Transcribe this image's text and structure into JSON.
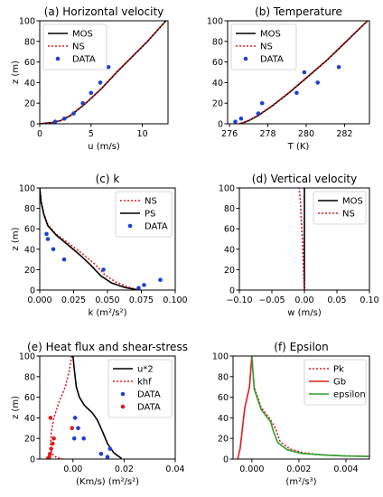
{
  "figure": {
    "name": "six-panel-profile-figure"
  },
  "chart_data": [
    {
      "id": "a",
      "type": "line",
      "title": "(a) Horizontal velocity",
      "xlabel": "u (m/s)",
      "ylabel": "z (m)",
      "xlim": [
        0,
        12.5
      ],
      "ylim": [
        0,
        100
      ],
      "xticks": [
        0,
        5,
        10
      ],
      "xtick_labels": [
        "0",
        "5",
        "10"
      ],
      "yticks": [
        0,
        20,
        40,
        60,
        80,
        100
      ],
      "ytick_labels": [
        "0",
        "20",
        "40",
        "60",
        "80",
        "100"
      ],
      "grid": false,
      "legend": "top-left",
      "series": [
        {
          "name": "MOS",
          "kind": "line",
          "color": "#000000",
          "dash": "",
          "x": [
            0,
            0.5,
            1.2,
            2,
            3,
            4.5,
            6,
            7.5,
            9,
            10.5,
            12.3
          ],
          "y": [
            0,
            0.5,
            1.2,
            3,
            8,
            20,
            34,
            50,
            65,
            80,
            100
          ]
        },
        {
          "name": "NS",
          "kind": "line",
          "color": "#e31a1c",
          "dash": "2,2",
          "x": [
            0,
            0.5,
            1.2,
            2,
            3,
            4.5,
            6,
            7.5,
            9,
            10.5,
            12.3
          ],
          "y": [
            0,
            0.5,
            1.3,
            3.2,
            8.3,
            20.3,
            34.3,
            50.3,
            65.3,
            80.3,
            100
          ]
        },
        {
          "name": "DATA",
          "kind": "scatter",
          "color": "#1f3fd6",
          "x": [
            1.5,
            2.4,
            3.3,
            4.2,
            5,
            5.9,
            6.7
          ],
          "y": [
            2,
            5,
            10,
            20,
            30,
            40,
            55
          ]
        }
      ]
    },
    {
      "id": "b",
      "type": "line",
      "title": "(b) Temperature",
      "xlabel": "T (K)",
      "ylabel": "",
      "xlim": [
        275.9,
        283.3
      ],
      "ylim": [
        0,
        100
      ],
      "xticks": [
        276,
        278,
        280,
        282
      ],
      "xtick_labels": [
        "276",
        "278",
        "280",
        "282"
      ],
      "yticks": [
        0,
        20,
        40,
        60,
        80,
        100
      ],
      "ytick_labels": [
        "0",
        "20",
        "40",
        "60",
        "80",
        "100"
      ],
      "grid": false,
      "legend": "top-left",
      "series": [
        {
          "name": "MOS",
          "kind": "line",
          "color": "#000000",
          "dash": "",
          "x": [
            276.5,
            276.7,
            277.0,
            277.5,
            278.2,
            279.1,
            280.1,
            281.1,
            282.1,
            283.2
          ],
          "y": [
            0,
            1,
            3,
            8,
            17,
            30,
            46,
            62,
            80,
            100
          ]
        },
        {
          "name": "NS",
          "kind": "line",
          "color": "#e31a1c",
          "dash": "2,2",
          "x": [
            276.5,
            276.7,
            277.0,
            277.5,
            278.2,
            279.1,
            280.1,
            281.1,
            282.1,
            283.2
          ],
          "y": [
            0,
            1.2,
            3.3,
            8.4,
            17.4,
            30.4,
            46.4,
            62.4,
            80.4,
            100
          ]
        },
        {
          "name": "DATA",
          "kind": "scatter",
          "color": "#1f3fd6",
          "x": [
            276.3,
            276.6,
            277.5,
            277.7,
            279.5,
            279.9,
            280.6,
            281.7
          ],
          "y": [
            2,
            5,
            10,
            20,
            30,
            50,
            40,
            55
          ]
        }
      ]
    },
    {
      "id": "c",
      "type": "line",
      "title": "(c) k",
      "xlabel": "k (m²/s²)",
      "ylabel": "z (m)",
      "xlim": [
        0,
        0.1
      ],
      "ylim": [
        0,
        100
      ],
      "xticks": [
        0,
        0.025,
        0.05,
        0.075,
        0.1
      ],
      "xtick_labels": [
        "0.000",
        "0.025",
        "0.050",
        "0.075",
        "0.100"
      ],
      "yticks": [
        0,
        20,
        40,
        60,
        80,
        100
      ],
      "ytick_labels": [
        "0",
        "20",
        "40",
        "60",
        "80",
        "100"
      ],
      "grid": false,
      "legend": "top-right",
      "series": [
        {
          "name": "NS",
          "kind": "line",
          "color": "#e31a1c",
          "dash": "2,2",
          "x": [
            0.0,
            0.001,
            0.003,
            0.006,
            0.012,
            0.022,
            0.032,
            0.041,
            0.048,
            0.056,
            0.065,
            0.072
          ],
          "y": [
            100,
            88,
            75,
            64,
            55,
            45,
            35,
            25,
            15,
            8,
            3,
            0.5
          ]
        },
        {
          "name": "PS",
          "kind": "line",
          "color": "#000000",
          "dash": "",
          "x": [
            0.0,
            0.001,
            0.003,
            0.006,
            0.012,
            0.021,
            0.03,
            0.038,
            0.045,
            0.053,
            0.063,
            0.071
          ],
          "y": [
            100,
            86,
            74,
            63,
            54,
            44,
            34,
            24,
            14,
            7,
            2.5,
            0.5
          ]
        },
        {
          "name": "DATA",
          "kind": "scatter",
          "color": "#1f3fd6",
          "x": [
            0.005,
            0.006,
            0.01,
            0.018,
            0.047,
            0.073,
            0.077,
            0.089
          ],
          "y": [
            55,
            50,
            40,
            30,
            20,
            2,
            5,
            10
          ]
        }
      ]
    },
    {
      "id": "d",
      "type": "line",
      "title": "(d) Vertical velocity",
      "xlabel": "w (m/s)",
      "ylabel": "",
      "xlim": [
        -0.1,
        0.1
      ],
      "ylim": [
        0,
        100
      ],
      "xticks": [
        -0.1,
        -0.05,
        0,
        0.05,
        0.1
      ],
      "xtick_labels": [
        "−0.10",
        "−0.05",
        "0.00",
        "0.05",
        "0.10"
      ],
      "yticks": [
        0,
        20,
        40,
        60,
        80,
        100
      ],
      "ytick_labels": [
        "0",
        "20",
        "40",
        "60",
        "80",
        "100"
      ],
      "grid": false,
      "legend": "top-right",
      "series": [
        {
          "name": "MOS",
          "kind": "line",
          "color": "#000000",
          "dash": "",
          "x": [
            0,
            0,
            0,
            0,
            0,
            0
          ],
          "y": [
            0,
            20,
            40,
            60,
            80,
            100
          ]
        },
        {
          "name": "NS",
          "kind": "line",
          "color": "#e31a1c",
          "dash": "2,2",
          "x": [
            -0.0002,
            -0.001,
            -0.002,
            -0.003,
            -0.005,
            -0.006,
            -0.008
          ],
          "y": [
            0,
            10,
            30,
            50,
            70,
            85,
            100
          ]
        }
      ]
    },
    {
      "id": "e",
      "type": "line",
      "title": "(e) Heat flux and shear-stress",
      "xlabel": "(Km/s)  (m²/s²)",
      "ylabel": "z (m)",
      "xlim": [
        -0.013,
        0.04
      ],
      "ylim": [
        0,
        100
      ],
      "xticks": [
        0,
        0.02,
        0.04
      ],
      "xtick_labels": [
        "0.00",
        "0.02",
        "0.04"
      ],
      "yticks": [
        0,
        20,
        40,
        60,
        80,
        100
      ],
      "ytick_labels": [
        "0",
        "20",
        "40",
        "60",
        "80",
        "100"
      ],
      "grid": false,
      "legend": "top-right",
      "series": [
        {
          "name": "u*2",
          "kind": "line",
          "color": "#000000",
          "dash": "",
          "x": [
            0.0,
            0.0006,
            0.0013,
            0.0025,
            0.0045,
            0.0075,
            0.0095,
            0.0115,
            0.0135,
            0.016,
            0.019
          ],
          "y": [
            100,
            85,
            70,
            60,
            52,
            45,
            38,
            27,
            15,
            6,
            0.5
          ]
        },
        {
          "name": "khf",
          "kind": "line",
          "color": "#e31a1c",
          "dash": "2,2",
          "x": [
            -0.0005,
            -0.0015,
            -0.003,
            -0.0055,
            -0.0075,
            -0.0085,
            -0.0088,
            -0.0082,
            -0.0065,
            -0.004
          ],
          "y": [
            100,
            85,
            70,
            55,
            40,
            25,
            12,
            5,
            1.5,
            0.3
          ]
        },
        {
          "name": "DATA",
          "kind": "scatter",
          "color": "#1f3fd6",
          "x": [
            0.0008,
            0.002,
            0.0005,
            0.0042,
            0.011,
            0.0145,
            0.0135
          ],
          "y": [
            40,
            30,
            20,
            20,
            5,
            10,
            2
          ]
        },
        {
          "name": "DATA",
          "kind": "scatter",
          "color": "#e31a1c",
          "x": [
            -0.0098,
            -0.0093,
            -0.009,
            -0.0085,
            -0.008,
            -0.0075,
            -0.0004,
            -0.0088
          ],
          "y": [
            0.5,
            2,
            5,
            10,
            15,
            20,
            30,
            40
          ]
        }
      ]
    },
    {
      "id": "f",
      "type": "line",
      "title": "(f) Epsilon",
      "xlabel": "(m²/s³)",
      "ylabel": "",
      "xlim": [
        -0.0008,
        0.005
      ],
      "ylim": [
        0,
        100
      ],
      "xticks": [
        0,
        0.002,
        0.004
      ],
      "xtick_labels": [
        "0.000",
        "0.002",
        "0.004"
      ],
      "yticks": [
        0,
        20,
        40,
        60,
        80,
        100
      ],
      "ytick_labels": [
        "0",
        "20",
        "40",
        "60",
        "80",
        "100"
      ],
      "grid": false,
      "legend": "top-right",
      "series": [
        {
          "name": "Pk",
          "kind": "line",
          "color": "#e31a1c",
          "dash": "2,2",
          "x": [
            0.0,
            0.0001,
            0.0004,
            0.0008,
            0.001,
            0.0012,
            0.0016,
            0.0022,
            0.003,
            0.004,
            0.005
          ],
          "y": [
            100,
            70,
            50,
            38,
            30,
            17,
            10,
            6,
            4,
            3,
            2.5
          ]
        },
        {
          "name": "Gb",
          "kind": "line",
          "color": "#e31a1c",
          "dash": "",
          "x": [
            0.0,
            -0.0001,
            -0.0003,
            -0.0004,
            -0.0005,
            -0.0006
          ],
          "y": [
            100,
            70,
            50,
            30,
            10,
            0
          ]
        },
        {
          "name": "epsilon",
          "kind": "line",
          "color": "#2ca02c",
          "dash": "",
          "x": [
            0.0,
            0.0001,
            0.0004,
            0.0008,
            0.0009,
            0.0011,
            0.0015,
            0.0021,
            0.003,
            0.004,
            0.005
          ],
          "y": [
            100,
            68,
            48,
            36,
            28,
            16,
            9,
            5.5,
            4,
            3,
            2.5
          ]
        }
      ]
    }
  ]
}
